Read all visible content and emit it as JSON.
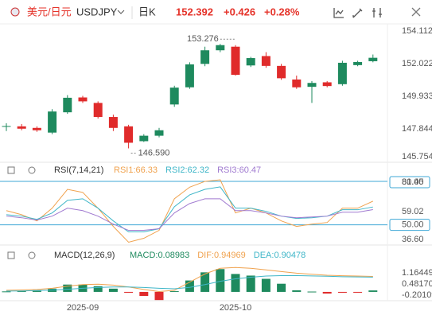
{
  "header": {
    "instrument": "美元/日元",
    "symbol": "USDJPY",
    "period": "日K",
    "price": 152.392,
    "change": "+0.426",
    "change_pct": "+0.28%"
  },
  "chart_data": [
    {
      "type": "candlestick",
      "up_color": "#1e8a5e",
      "down_color": "#e02b2b",
      "categories": [
        null,
        null,
        null,
        null,
        null,
        "2025-09",
        null,
        null,
        null,
        null,
        null,
        null,
        null,
        null,
        null,
        "2025-10",
        null,
        null,
        null,
        null,
        null,
        null,
        null,
        null,
        null
      ],
      "open": [
        147.98,
        148.0,
        147.9,
        147.6,
        148.9,
        149.85,
        149.5,
        148.6,
        148.0,
        147.05,
        147.4,
        149.4,
        150.5,
        152.0,
        152.87,
        153.1,
        151.9,
        152.5,
        151.87,
        151.0,
        150.53,
        150.82,
        150.7,
        151.92,
        152.17
      ],
      "high": [
        148.2,
        148.15,
        148.0,
        149.1,
        150.0,
        149.95,
        149.6,
        148.75,
        148.1,
        147.5,
        147.9,
        150.6,
        152.1,
        153.1,
        153.276,
        153.2,
        152.45,
        152.75,
        152.0,
        151.25,
        150.9,
        150.9,
        152.2,
        152.2,
        152.6
      ],
      "low": [
        147.7,
        147.75,
        147.65,
        147.5,
        148.8,
        149.5,
        148.5,
        147.7,
        146.59,
        147.0,
        147.3,
        149.25,
        150.4,
        151.85,
        152.75,
        151.25,
        151.8,
        151.75,
        150.98,
        150.4,
        149.5,
        150.5,
        150.6,
        151.85,
        152.1
      ],
      "close": [
        148.02,
        147.85,
        147.75,
        148.95,
        149.83,
        149.6,
        148.6,
        147.9,
        146.95,
        147.4,
        147.75,
        150.48,
        151.97,
        152.87,
        153.2,
        151.3,
        152.37,
        151.87,
        151.08,
        150.5,
        150.78,
        150.58,
        152.07,
        152.12,
        152.39
      ],
      "annotations": [
        {
          "index": 14,
          "field": "high",
          "label": "153.276"
        },
        {
          "index": 8,
          "field": "low",
          "label": "146.590"
        }
      ],
      "ylim": [
        145.75,
        154.46
      ],
      "yticks": [
        154.112,
        152.022,
        149.933,
        147.844,
        145.754
      ]
    },
    {
      "type": "line",
      "title": "RSI(7,14,21)",
      "series": [
        {
          "name": "RSI1:66.33",
          "color": "#f0a24e",
          "values": [
            59.8,
            57,
            52.7,
            61.5,
            74.5,
            72.4,
            61.5,
            48.9,
            38,
            40.7,
            46.2,
            68,
            76,
            80,
            81.1,
            58.2,
            61.5,
            58.2,
            52.7,
            48.9,
            50.5,
            51.6,
            61.5,
            61.5,
            66.33
          ]
        },
        {
          "name": "RSI2:62.32",
          "color": "#3fb6c8",
          "values": [
            57,
            56,
            53.8,
            58.2,
            66.9,
            68,
            61.5,
            52.7,
            45.1,
            45.1,
            47.3,
            62.5,
            70.7,
            74.5,
            76.2,
            61.5,
            61.5,
            59.3,
            56,
            54.4,
            54.9,
            56,
            60.4,
            60.4,
            62.32
          ]
        },
        {
          "name": "RSI3:60.47",
          "color": "#a07ad0",
          "values": [
            56,
            54.9,
            53.3,
            56,
            61.5,
            59.8,
            56,
            50.5,
            46.2,
            46.2,
            47.3,
            58.2,
            64.7,
            68,
            68,
            59.8,
            59.8,
            58.2,
            56,
            54.9,
            55.4,
            56,
            58.7,
            58.7,
            60.47
          ]
        }
      ],
      "ylim": [
        36.6,
        83.3
      ],
      "yticks": [
        {
          "value": 80,
          "label": "80.00",
          "level": true
        },
        81.45,
        59.02,
        {
          "value": 50,
          "label": "50.00",
          "level": true
        },
        {
          "value": 36.6,
          "label": "36.60"
        }
      ]
    },
    {
      "type": "macd",
      "title": "MACD(12,26,9)",
      "series": [
        {
          "name": "MACD:0.08983",
          "kind": "bar",
          "up_color": "#1e8a5e",
          "down_color": "#e02b2b",
          "values": [
            0.03,
            0.05,
            0.1,
            0.2,
            0.45,
            0.45,
            0.35,
            0.2,
            -0.05,
            -0.25,
            -0.5,
            0.05,
            0.7,
            1.2,
            1.4,
            1.1,
            1.0,
            0.8,
            0.5,
            0.1,
            0.02,
            -0.1,
            -0.05,
            -0.03,
            0.08983
          ]
        },
        {
          "name": "DIF:0.94969",
          "kind": "line",
          "color": "#f0a24e",
          "values": [
            0.1,
            0.12,
            0.15,
            0.22,
            0.35,
            0.45,
            0.47,
            0.42,
            0.3,
            0.15,
            0.02,
            0.1,
            0.6,
            1.1,
            1.45,
            1.5,
            1.45,
            1.35,
            1.25,
            1.15,
            1.08,
            1.02,
            0.99,
            0.97,
            0.94969
          ]
        },
        {
          "name": "DEA:0.90478",
          "kind": "line",
          "color": "#3fb6c8",
          "values": [
            0.05,
            0.06,
            0.08,
            0.11,
            0.16,
            0.22,
            0.27,
            0.3,
            0.3,
            0.27,
            0.22,
            0.19,
            0.28,
            0.45,
            0.65,
            0.8,
            0.9,
            0.97,
            1.0,
            1.0,
            0.98,
            0.96,
            0.93,
            0.92,
            0.90478
          ]
        }
      ],
      "ylim": [
        -0.54,
        1.9
      ],
      "yticks": [
        1.16449,
        {
          "value": 0.4817,
          "label": "0.48170"
        },
        -0.20109
      ]
    }
  ]
}
